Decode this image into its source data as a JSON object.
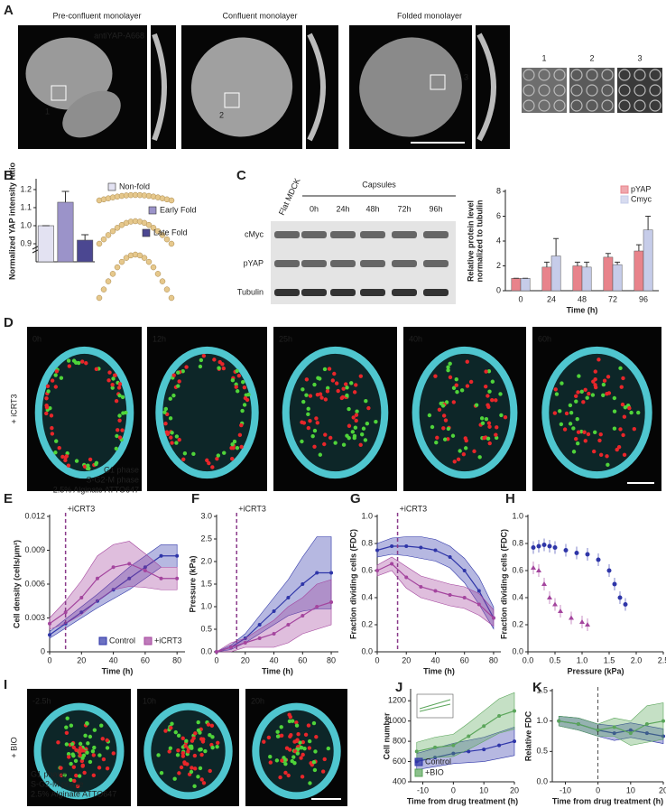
{
  "panel_a": {
    "label": "A",
    "titles": [
      "Pre-confluent monolayer",
      "Confluent monolayer",
      "Folded monolayer"
    ],
    "stain": "antiYAP-A668",
    "roi_labels": [
      "1",
      "2",
      "3"
    ],
    "zoom_labels": [
      "1",
      "2",
      "3"
    ]
  },
  "panel_c": {
    "label": "C",
    "group": "Capsules",
    "lanes": [
      "Flat MDCK",
      "0h",
      "24h",
      "48h",
      "72h",
      "96h"
    ],
    "rows": [
      "cMyc",
      "pYAP",
      "Tubulin"
    ]
  },
  "panel_d": {
    "label": "D",
    "treatment": "+ iCRT3",
    "times": [
      "0h",
      "12h",
      "25h",
      "40h",
      "60h"
    ],
    "legend": [
      "G1 phase",
      "S-G2-M phase",
      "2.5% Alginate ATTO647"
    ]
  },
  "panel_i": {
    "label": "I",
    "treatment": "+ BIO",
    "times": [
      "-2.5h",
      "10h",
      "20h"
    ],
    "legend": [
      "G1 phase",
      "S-G2-M phase",
      "2.5% Alginate ATTO647"
    ]
  },
  "chart_data": [
    {
      "type": "bar",
      "label": "B",
      "ylabel": "Normalized YAP intensity ratio",
      "categories": [
        "Non-fold",
        "Early Fold",
        "Late Fold"
      ],
      "values": [
        1.0,
        1.13,
        0.92
      ],
      "errors": [
        0,
        0.06,
        0.03
      ],
      "colors": [
        "#e3e2f2",
        "#9b93c9",
        "#4b4791"
      ],
      "ylim": [
        0.8,
        1.25
      ],
      "yticks": [
        {
          "value": 0.9,
          "label": "0.9"
        },
        {
          "value": 1,
          "label": "1.0"
        },
        {
          "value": 1.1,
          "label": "1.1"
        },
        {
          "value": 1.2,
          "label": "1.2"
        }
      ]
    },
    {
      "type": "groupbar",
      "ylabel": [
        "Relative protein level",
        "normalized to tubulin"
      ],
      "xlabel": "Time (h)",
      "categories": [
        "0",
        "24",
        "48",
        "72",
        "96"
      ],
      "series": [
        {
          "name": "pYAP",
          "color": "#e8838b",
          "values": [
            1,
            1.9,
            2.0,
            2.7,
            3.2
          ],
          "errors": [
            0,
            0.4,
            0.3,
            0.3,
            0.5
          ]
        },
        {
          "name": "Cmyc",
          "color": "#c6cce9",
          "values": [
            1,
            2.8,
            1.9,
            2.1,
            4.9
          ],
          "errors": [
            0,
            1.4,
            0.4,
            0.2,
            1.1
          ]
        }
      ],
      "ylim": [
        0,
        8
      ],
      "yticks": [
        0,
        2,
        4,
        6,
        8
      ],
      "legend": "upper right"
    },
    {
      "type": "line",
      "label": "E",
      "ylabel": "Cell density (cells/μm²)",
      "xlabel": "Time (h)",
      "x": [
        0,
        10,
        20,
        30,
        40,
        50,
        60,
        70,
        80
      ],
      "series": [
        {
          "name": "Control",
          "color": "#2e35a8",
          "values": [
            0.0015,
            0.0025,
            0.0035,
            0.0045,
            0.0055,
            0.0065,
            0.0075,
            0.0085,
            0.0085
          ],
          "errors": [
            0.0003,
            0.0004,
            0.0005,
            0.0006,
            0.0008,
            0.001,
            0.001,
            0.001,
            0.001
          ]
        },
        {
          "name": "+iCRT3",
          "color": "#a4459e",
          "values": [
            0.0025,
            0.0035,
            0.0048,
            0.0065,
            0.0075,
            0.0078,
            0.0072,
            0.0065,
            0.0065
          ],
          "errors": [
            0.0005,
            0.001,
            0.0015,
            0.002,
            0.002,
            0.002,
            0.0015,
            0.001,
            0.001
          ]
        }
      ],
      "xlim": [
        0,
        85
      ],
      "xticks": [
        0,
        20,
        40,
        60,
        80
      ],
      "ylim": [
        0,
        0.012
      ],
      "yticks": [
        0,
        0.003,
        0.006,
        0.009,
        0.012
      ],
      "event_x": 10,
      "annotation": "+iCRT3",
      "legend": "lower right"
    },
    {
      "type": "line",
      "label": "F",
      "ylabel": "Pressure (kPa)",
      "xlabel": "Time (h)",
      "x": [
        0,
        10,
        20,
        30,
        40,
        50,
        60,
        70,
        80
      ],
      "series": [
        {
          "color": "#2e35a8",
          "values": [
            0,
            0.1,
            0.3,
            0.6,
            0.9,
            1.2,
            1.5,
            1.75,
            1.75
          ],
          "errors": [
            0,
            0.05,
            0.1,
            0.2,
            0.3,
            0.4,
            0.6,
            0.8,
            0.8
          ]
        },
        {
          "color": "#a4459e",
          "values": [
            0,
            0.1,
            0.2,
            0.3,
            0.4,
            0.6,
            0.8,
            1.0,
            1.1
          ],
          "errors": [
            0,
            0.1,
            0.1,
            0.2,
            0.3,
            0.4,
            0.4,
            0.5,
            0.5
          ]
        }
      ],
      "xlim": [
        0,
        85
      ],
      "xticks": [
        0,
        20,
        40,
        60,
        80
      ],
      "ylim": [
        0,
        3
      ],
      "yticks": [
        {
          "value": 0,
          "label": "0.0"
        },
        0.5,
        {
          "value": 1,
          "label": "1.0"
        },
        1.5,
        {
          "value": 2,
          "label": "2.0"
        },
        2.5,
        {
          "value": 3,
          "label": "3.0"
        }
      ],
      "event_x": 14,
      "annotation": "+iCRT3"
    },
    {
      "type": "line",
      "label": "G",
      "ylabel": "Fraction dividing cells (FDC)",
      "xlabel": "Time (h)",
      "x": [
        0,
        10,
        20,
        30,
        40,
        50,
        60,
        70,
        80
      ],
      "series": [
        {
          "color": "#2e35a8",
          "values": [
            0.75,
            0.78,
            0.78,
            0.77,
            0.75,
            0.7,
            0.6,
            0.45,
            0.25
          ],
          "errors": [
            0.05,
            0.06,
            0.07,
            0.08,
            0.08,
            0.08,
            0.09,
            0.1,
            0.08
          ]
        },
        {
          "color": "#a4459e",
          "values": [
            0.6,
            0.65,
            0.55,
            0.48,
            0.45,
            0.42,
            0.4,
            0.35,
            0.25
          ],
          "errors": [
            0.04,
            0.05,
            0.08,
            0.08,
            0.08,
            0.08,
            0.08,
            0.08,
            0.06
          ]
        }
      ],
      "xlim": [
        0,
        85
      ],
      "xticks": [
        0,
        20,
        40,
        60,
        80
      ],
      "ylim": [
        0,
        1
      ],
      "yticks": [
        {
          "value": 0,
          "label": "0.0"
        },
        0.2,
        0.4,
        0.6,
        0.8,
        {
          "value": 1,
          "label": "1.0"
        }
      ],
      "event_x": 14,
      "annotation": "+iCRT3"
    },
    {
      "type": "scatter",
      "label": "H",
      "ylabel": "Fraction dividing cells (FDC)",
      "xlabel": "Pressure (kPa)",
      "series": [
        {
          "color": "#2e35a8",
          "x": [
            0.1,
            0.2,
            0.3,
            0.4,
            0.5,
            0.7,
            0.9,
            1.1,
            1.3,
            1.5,
            1.6,
            1.7,
            1.8
          ],
          "values": [
            0.77,
            0.78,
            0.79,
            0.78,
            0.77,
            0.75,
            0.73,
            0.72,
            0.68,
            0.6,
            0.5,
            0.4,
            0.35
          ]
        },
        {
          "color": "#a4459e",
          "x": [
            0.1,
            0.2,
            0.3,
            0.4,
            0.5,
            0.6,
            0.8,
            1.0,
            1.1
          ],
          "values": [
            0.62,
            0.6,
            0.5,
            0.4,
            0.35,
            0.3,
            0.25,
            0.22,
            0.2
          ]
        }
      ],
      "xlim": [
        0,
        2.5
      ],
      "xticks": [
        {
          "value": 0,
          "label": "0.0"
        },
        0.5,
        {
          "value": 1,
          "label": "1.0"
        },
        1.5,
        {
          "value": 2,
          "label": "2.0"
        },
        2.5
      ],
      "ylim": [
        0,
        1
      ],
      "yticks": [
        {
          "value": 0,
          "label": "0.0"
        },
        0.2,
        0.4,
        0.6,
        0.8,
        {
          "value": 1,
          "label": "1.0"
        }
      ]
    },
    {
      "type": "line",
      "label": "J",
      "ylabel": "Cell number",
      "xlabel": "Time from drug treatment (h)",
      "x": [
        -12,
        -6,
        0,
        5,
        10,
        15,
        20
      ],
      "series": [
        {
          "name": "Control",
          "color": "#2e35a8",
          "values": [
            600,
            640,
            680,
            700,
            720,
            760,
            800
          ],
          "errors": [
            80,
            90,
            100,
            110,
            120,
            130,
            140
          ]
        },
        {
          "name": "+BIO",
          "color": "#5aa55a",
          "values": [
            700,
            740,
            760,
            850,
            950,
            1050,
            1100
          ],
          "errors": [
            90,
            100,
            110,
            130,
            150,
            170,
            180
          ]
        }
      ],
      "xlim": [
        -14,
        20
      ],
      "xticks": [
        -10,
        0,
        10,
        20
      ],
      "ylim": [
        400,
        1300
      ],
      "yticks": [
        400,
        600,
        800,
        1000,
        1200
      ],
      "legend": "lower left"
    },
    {
      "type": "line",
      "label": "K",
      "ylabel": "Relative FDC",
      "xlabel": "Time from drug treatment (h)",
      "x": [
        -12,
        -6,
        0,
        5,
        10,
        15,
        20
      ],
      "series": [
        {
          "color": "#2e35a8",
          "values": [
            1.0,
            0.95,
            0.85,
            0.8,
            0.85,
            0.8,
            0.75
          ],
          "errors": [
            0.08,
            0.1,
            0.1,
            0.12,
            0.12,
            0.12,
            0.12
          ]
        },
        {
          "color": "#5aa55a",
          "values": [
            1.0,
            0.95,
            0.85,
            0.9,
            0.8,
            0.95,
            1.0
          ],
          "errors": [
            0.08,
            0.1,
            0.1,
            0.15,
            0.2,
            0.3,
            0.3
          ]
        }
      ],
      "xlim": [
        -14,
        20
      ],
      "xticks": [
        -10,
        0,
        10,
        20
      ],
      "ylim": [
        0,
        1.5
      ],
      "yticks": [
        {
          "value": 0,
          "label": "0.0"
        },
        0.5,
        {
          "value": 1,
          "label": "1.0"
        },
        1.5
      ],
      "event_x": 0
    }
  ]
}
